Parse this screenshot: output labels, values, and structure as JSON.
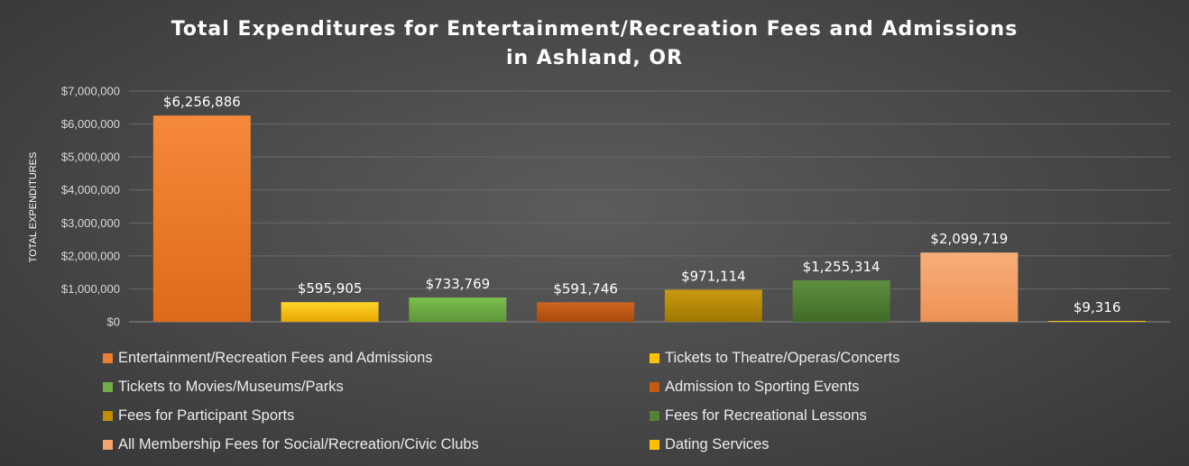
{
  "chart_data": {
    "type": "bar",
    "title_lines": [
      "Total Expenditures for Entertainment/Recreation Fees and Admissions",
      "in Ashland, OR"
    ],
    "ylabel": "TOTAL EXPENDITURES",
    "xlabel": "",
    "ylim": [
      0,
      7000000
    ],
    "yticks": [
      {
        "value": 0,
        "label": "$0"
      },
      {
        "value": 1000000,
        "label": "$1,000,000"
      },
      {
        "value": 2000000,
        "label": "$2,000,000"
      },
      {
        "value": 3000000,
        "label": "$3,000,000"
      },
      {
        "value": 4000000,
        "label": "$4,000,000"
      },
      {
        "value": 5000000,
        "label": "$5,000,000"
      },
      {
        "value": 6000000,
        "label": "$6,000,000"
      },
      {
        "value": 7000000,
        "label": "$7,000,000"
      }
    ],
    "grid": true,
    "legend_position": "bottom",
    "bars": [
      {
        "category": "Entertainment/Recreation Fees and Admissions",
        "value": 6256886,
        "label": "$6,256,886",
        "color": "#ed7d31",
        "color_top": "#f58a3a",
        "color_bottom": "#dd6a1a"
      },
      {
        "category": "Tickets to Theatre/Operas/Concerts",
        "value": 595905,
        "label": "$595,905",
        "color": "#ffc000",
        "color_top": "#ffd42a",
        "color_bottom": "#e8a800"
      },
      {
        "category": "Tickets to Movies/Museums/Parks",
        "value": 733769,
        "label": "$733,769",
        "color": "#70ad47",
        "color_top": "#7cc04f",
        "color_bottom": "#5d9639"
      },
      {
        "category": "Admission to Sporting Events",
        "value": 591746,
        "label": "$591,746",
        "color": "#c55a11",
        "color_top": "#cf6420",
        "color_bottom": "#a84a0c"
      },
      {
        "category": "Fees for Participant Sports",
        "value": 971114,
        "label": "$971,114",
        "color": "#bf8f00",
        "color_top": "#c99a10",
        "color_bottom": "#a07800"
      },
      {
        "category": "Fees for Recreational Lessons",
        "value": 1255314,
        "label": "$1,255,314",
        "color": "#548235",
        "color_top": "#5e9040",
        "color_bottom": "#416a27"
      },
      {
        "category": "All Membership Fees for Social/Recreation/Civic Clubs",
        "value": 2099719,
        "label": "$2,099,719",
        "color": "#f4a36b",
        "color_top": "#f7ae79",
        "color_bottom": "#ee9256"
      },
      {
        "category": "Dating Services",
        "value": 9316,
        "label": "$9,316",
        "color": "#ffc000",
        "color_top": "#ffd42a",
        "color_bottom": "#e8a800"
      }
    ]
  }
}
